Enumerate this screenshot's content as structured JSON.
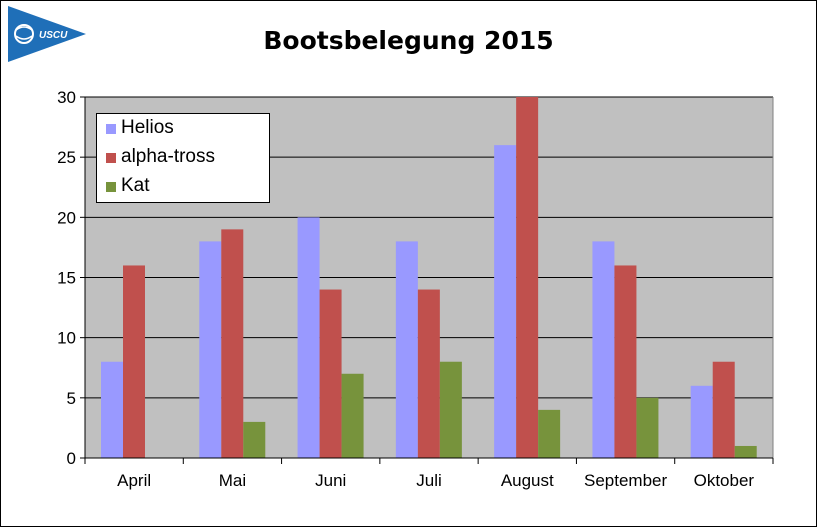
{
  "title": "Bootsbelegung 2015",
  "logo_text": "USCU",
  "colors": {
    "plot_bg": "#c0c0c0",
    "logo_blue": "#1f6fb8"
  },
  "chart_data": {
    "type": "bar",
    "title": "Bootsbelegung 2015",
    "xlabel": "",
    "ylabel": "",
    "ylim": [
      0,
      30
    ],
    "yticks": [
      0,
      5,
      10,
      15,
      20,
      25,
      30
    ],
    "grid": true,
    "legend_position": "top-left",
    "categories": [
      "April",
      "Mai",
      "Juni",
      "Juli",
      "August",
      "September",
      "Oktober"
    ],
    "series": [
      {
        "name": "Helios",
        "color": "#9999ff",
        "values": [
          8,
          18,
          20,
          18,
          26,
          18,
          6
        ]
      },
      {
        "name": "alpha-tross",
        "color": "#c0504d",
        "values": [
          16,
          19,
          14,
          14,
          31,
          16,
          8
        ]
      },
      {
        "name": "Kat",
        "color": "#77933c",
        "values": [
          0,
          3,
          7,
          8,
          4,
          5,
          1
        ]
      }
    ]
  }
}
